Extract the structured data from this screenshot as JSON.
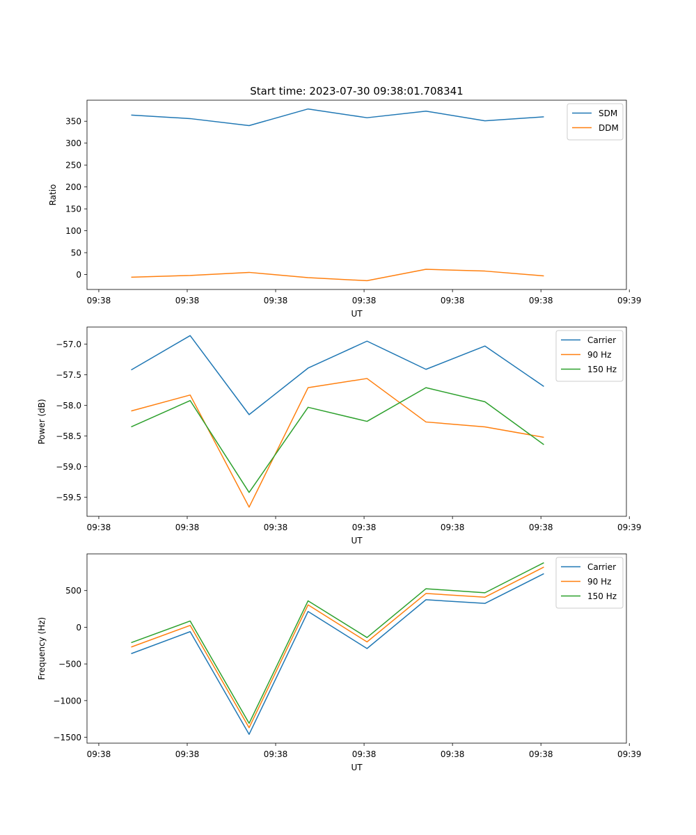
{
  "figure_title": "Start time: 2023-07-30 09:38:01.708341",
  "colors": {
    "blue": "#1f77b4",
    "orange": "#ff7f0e",
    "green": "#2ca02c"
  },
  "chart_data": [
    {
      "type": "line",
      "ylabel": "Ratio",
      "xlabel": "UT",
      "xlim": [
        -0.75,
        8.4
      ],
      "ylim": [
        -34,
        398
      ],
      "xticks": [
        -0.55,
        0.95,
        2.45,
        3.95,
        5.45,
        6.95,
        8.45
      ],
      "xtick_labels": [
        "09:38",
        "09:38",
        "09:38",
        "09:38",
        "09:38",
        "09:38",
        "09:39"
      ],
      "yticks": [
        0,
        50,
        100,
        150,
        200,
        250,
        300,
        350
      ],
      "ytick_labels": [
        "0",
        "50",
        "100",
        "150",
        "200",
        "250",
        "300",
        "350"
      ],
      "x": [
        0,
        1,
        2,
        3,
        4,
        5,
        6,
        7
      ],
      "series": [
        {
          "name": "SDM",
          "color": "#1f77b4",
          "values": [
            364,
            356,
            340,
            378,
            358,
            373,
            351,
            360
          ]
        },
        {
          "name": "DDM",
          "color": "#ff7f0e",
          "values": [
            -6,
            -2,
            5,
            -7,
            -14,
            12,
            8,
            -3
          ]
        }
      ],
      "legend": "top-right"
    },
    {
      "type": "line",
      "ylabel": "Power (dB)",
      "xlabel": "UT",
      "xlim": [
        -0.75,
        8.4
      ],
      "ylim": [
        -59.81,
        -56.72
      ],
      "xticks": [
        -0.55,
        0.95,
        2.45,
        3.95,
        5.45,
        6.95,
        8.45
      ],
      "xtick_labels": [
        "09:38",
        "09:38",
        "09:38",
        "09:38",
        "09:38",
        "09:38",
        "09:39"
      ],
      "yticks": [
        -59.5,
        -59.0,
        -58.5,
        -58.0,
        -57.5,
        -57.0
      ],
      "ytick_labels": [
        "−59.5",
        "−59.0",
        "−58.5",
        "−58.0",
        "−57.5",
        "−57.0"
      ],
      "x": [
        0,
        1,
        2,
        3,
        4,
        5,
        6,
        7
      ],
      "series": [
        {
          "name": "Carrier",
          "color": "#1f77b4",
          "values": [
            -57.42,
            -56.86,
            -58.15,
            -57.39,
            -56.95,
            -57.41,
            -57.03,
            -57.69
          ]
        },
        {
          "name": "90 Hz",
          "color": "#ff7f0e",
          "values": [
            -58.09,
            -57.83,
            -59.66,
            -57.71,
            -57.56,
            -58.27,
            -58.35,
            -58.52
          ]
        },
        {
          "name": "150 Hz",
          "color": "#2ca02c",
          "values": [
            -58.35,
            -57.92,
            -59.42,
            -58.03,
            -58.26,
            -57.71,
            -57.94,
            -58.64
          ]
        }
      ],
      "legend": "top-right"
    },
    {
      "type": "line",
      "ylabel": "Frequency (Hz)",
      "xlabel": "UT",
      "xlim": [
        -0.75,
        8.4
      ],
      "ylim": [
        -1580,
        1000
      ],
      "xticks": [
        -0.55,
        0.95,
        2.45,
        3.95,
        5.45,
        6.95,
        8.45
      ],
      "xtick_labels": [
        "09:38",
        "09:38",
        "09:38",
        "09:38",
        "09:38",
        "09:38",
        "09:39"
      ],
      "yticks": [
        -1500,
        -1000,
        -500,
        0,
        500
      ],
      "ytick_labels": [
        "−1500",
        "−1000",
        "−500",
        "0",
        "500"
      ],
      "x": [
        0,
        1,
        2,
        3,
        4,
        5,
        6,
        7
      ],
      "series": [
        {
          "name": "Carrier",
          "color": "#1f77b4",
          "values": [
            -360,
            -60,
            -1460,
            215,
            -290,
            375,
            325,
            730
          ]
        },
        {
          "name": "90 Hz",
          "color": "#ff7f0e",
          "values": [
            -270,
            25,
            -1370,
            305,
            -200,
            460,
            410,
            820
          ]
        },
        {
          "name": "150 Hz",
          "color": "#2ca02c",
          "values": [
            -210,
            85,
            -1310,
            360,
            -140,
            525,
            470,
            880
          ]
        }
      ],
      "legend": "top-right"
    }
  ]
}
